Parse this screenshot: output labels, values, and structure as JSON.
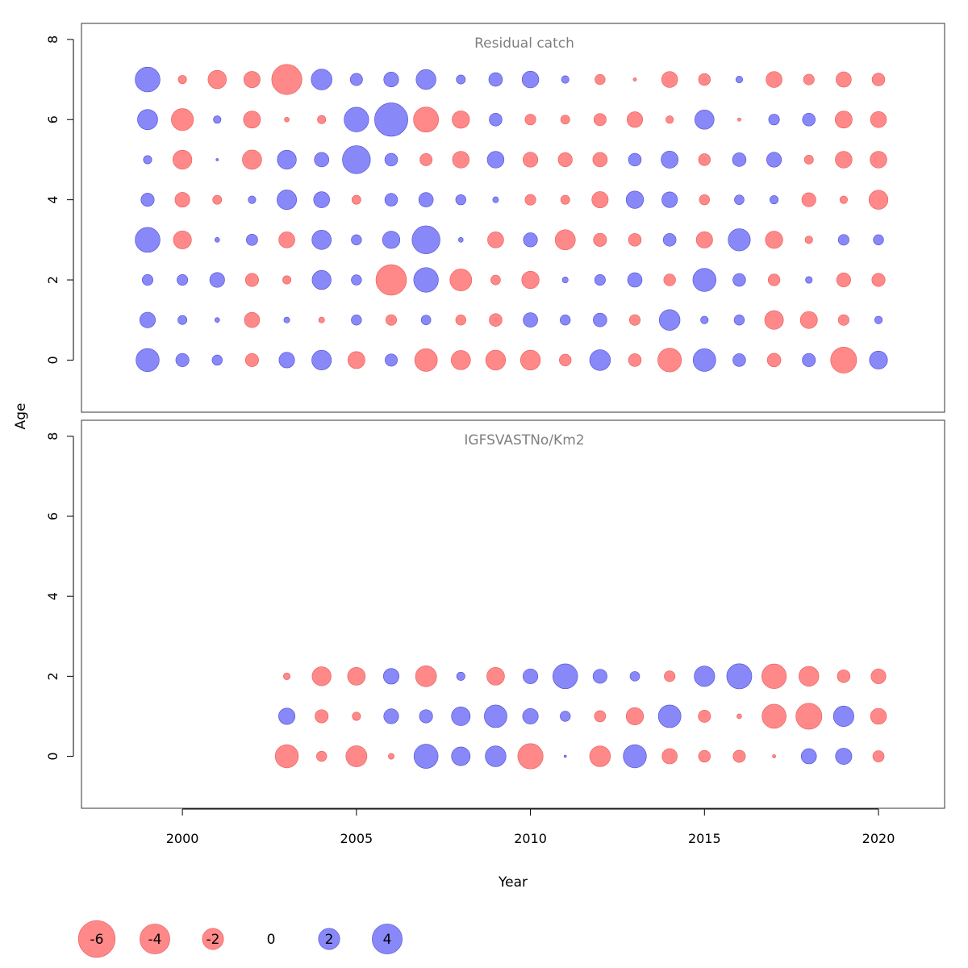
{
  "chart_data": {
    "type": "scatter",
    "subtype": "bubble",
    "xlabel": "Year",
    "ylabel": "Age",
    "xticks": [
      2000,
      2005,
      2010,
      2015,
      2020
    ],
    "xlim": [
      1997.1,
      2021.9
    ],
    "yticks": [
      0,
      2,
      4,
      6,
      8
    ],
    "ylim": [
      -1.3,
      8.4
    ],
    "grid": false,
    "colors": {
      "positive": "#7f7ff7",
      "negative": "#ff7f7f"
    },
    "legend": {
      "placement": "bottom",
      "items": [
        {
          "label": "-6",
          "value": -6
        },
        {
          "label": "-4",
          "value": -4
        },
        {
          "label": "-2",
          "value": -2
        },
        {
          "label": "0",
          "value": 0
        },
        {
          "label": "2",
          "value": 2
        },
        {
          "label": "4",
          "value": 4
        }
      ]
    },
    "panels": [
      {
        "title": "Residual catch",
        "years": [
          1999,
          2000,
          2001,
          2002,
          2003,
          2004,
          2005,
          2006,
          2007,
          2008,
          2009,
          2010,
          2011,
          2012,
          2013,
          2014,
          2015,
          2016,
          2017,
          2018,
          2019,
          2020
        ],
        "ages": [
          0,
          1,
          2,
          3,
          4,
          5,
          6,
          7
        ],
        "residuals": [
          [
            4.6,
            1.5,
            0.9,
            -1.5,
            2.1,
            3.3,
            -2.5,
            1.3,
            -4.4,
            -3.2,
            -3.4,
            -3.4,
            -1.2,
            3.7,
            -1.4,
            -4.8,
            4.4,
            1.4,
            -1.6,
            1.5,
            -5.8,
            2.8
          ],
          [
            2.1,
            0.7,
            0.2,
            -2.0,
            0.3,
            -0.3,
            0.9,
            -1.0,
            0.8,
            -0.9,
            -1.4,
            1.8,
            0.9,
            1.6,
            -1.0,
            3.7,
            0.5,
            0.9,
            -3.0,
            -2.5,
            -1.0,
            0.5
          ],
          [
            1.0,
            1.0,
            1.9,
            -1.5,
            -0.6,
            3.1,
            0.9,
            -8.0,
            5.2,
            -4.1,
            -0.8,
            -2.6,
            0.3,
            1.0,
            1.8,
            -1.2,
            4.6,
            1.4,
            -1.2,
            0.4,
            -1.7,
            -1.5
          ],
          [
            5.3,
            -2.8,
            0.2,
            1.1,
            -2.2,
            3.2,
            0.9,
            2.6,
            6.7,
            0.2,
            -2.2,
            1.7,
            -3.5,
            -1.5,
            -1.4,
            1.4,
            -2.3,
            4.2,
            -2.6,
            -0.5,
            1.0,
            0.9
          ],
          [
            1.5,
            -1.9,
            -0.7,
            0.5,
            3.3,
            2.2,
            -0.7,
            1.4,
            1.8,
            0.9,
            0.3,
            -1.0,
            -0.7,
            -2.3,
            2.6,
            2.1,
            -0.9,
            0.8,
            0.6,
            -1.7,
            -0.5,
            -3.1
          ],
          [
            0.6,
            -3.1,
            0.05,
            -3.2,
            3.1,
            1.8,
            6.7,
            1.4,
            -1.3,
            -2.4,
            2.4,
            -1.9,
            -1.7,
            -1.8,
            1.4,
            2.5,
            -1.2,
            1.6,
            1.9,
            -0.7,
            -2.4,
            -2.4
          ],
          [
            3.5,
            -4.2,
            0.5,
            -2.5,
            -0.2,
            -0.6,
            5.2,
            9.5,
            -5.4,
            -2.6,
            1.4,
            -1.0,
            -0.7,
            -1.3,
            -2.1,
            -0.5,
            3.2,
            -0.1,
            1.0,
            1.4,
            -2.5,
            -2.2
          ],
          [
            5.3,
            -0.6,
            -2.9,
            -2.3,
            -7.8,
            3.7,
            1.3,
            1.9,
            3.4,
            0.7,
            1.6,
            2.4,
            0.5,
            -0.9,
            -0.1,
            -2.2,
            -1.2,
            0.4,
            -2.2,
            -1.0,
            -2.0,
            -1.4
          ]
        ]
      },
      {
        "title": "IGFSVASTNo/Km2",
        "years": [
          2003,
          2004,
          2005,
          2006,
          2007,
          2008,
          2009,
          2010,
          2011,
          2012,
          2013,
          2014,
          2015,
          2016,
          2017,
          2018,
          2019,
          2020
        ],
        "ages": [
          0,
          1,
          2
        ],
        "residuals": [
          [
            -4.6,
            -0.9,
            -3.8,
            -0.3,
            5.0,
            3.0,
            3.7,
            -5.5,
            0.05,
            -3.7,
            4.6,
            -2.0,
            -1.2,
            -1.3,
            -0.1,
            2.0,
            2.3,
            -1.1
          ],
          [
            2.3,
            -1.5,
            -0.6,
            1.9,
            1.5,
            3.0,
            4.4,
            2.1,
            0.9,
            -1.1,
            -2.6,
            4.4,
            -1.3,
            -0.2,
            -5.0,
            -5.8,
            3.6,
            -2.2
          ],
          [
            -0.4,
            -3.1,
            -2.7,
            2.1,
            -3.8,
            0.6,
            -2.7,
            1.9,
            5.3,
            1.7,
            0.8,
            -1.0,
            3.6,
            5.4,
            -5.2,
            -3.4,
            -1.4,
            -1.9
          ]
        ]
      }
    ]
  }
}
